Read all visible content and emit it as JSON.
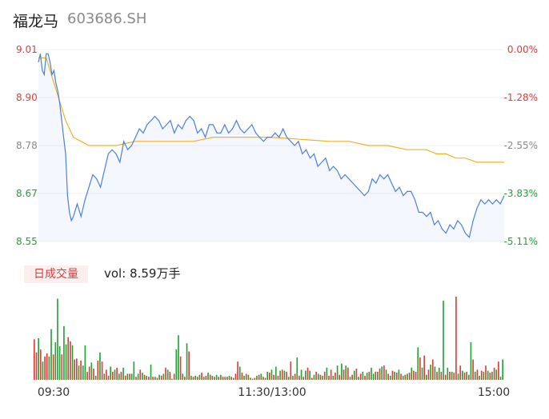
{
  "header": {
    "name": "福龙马",
    "code": "603686.SH"
  },
  "volume_panel": {
    "label": "日成交量",
    "summary": "vol: 8.59万手"
  },
  "colors": {
    "up": "#e53935",
    "down": "#21a336",
    "flat": "#888888",
    "price_line": "#4a7fe0",
    "avg_line": "#f5b025"
  },
  "chart_data": {
    "type": "line",
    "price_axis": {
      "min": 8.55,
      "max": 9.01,
      "ticks": [
        "9.01",
        "8.90",
        "8.78",
        "8.67",
        "8.55"
      ]
    },
    "pct_axis": {
      "ticks": [
        "0.00%",
        "-1.28%",
        "-2.55%",
        "-3.83%",
        "-5.11%"
      ]
    },
    "x_ticks": [
      "09:30",
      "11:30/13:00",
      "15:00"
    ],
    "x_range": [
      0,
      240
    ],
    "price": [
      [
        0,
        8.98
      ],
      [
        1,
        9.0
      ],
      [
        2,
        8.96
      ],
      [
        3,
        8.95
      ],
      [
        4,
        9.0
      ],
      [
        5,
        9.0
      ],
      [
        6,
        8.98
      ],
      [
        7,
        8.95
      ],
      [
        8,
        8.96
      ],
      [
        9,
        8.93
      ],
      [
        10,
        8.91
      ],
      [
        11,
        8.88
      ],
      [
        12,
        8.84
      ],
      [
        13,
        8.8
      ],
      [
        14,
        8.76
      ],
      [
        15,
        8.66
      ],
      [
        16,
        8.62
      ],
      [
        17,
        8.6
      ],
      [
        18,
        8.61
      ],
      [
        20,
        8.64
      ],
      [
        22,
        8.61
      ],
      [
        24,
        8.65
      ],
      [
        26,
        8.68
      ],
      [
        28,
        8.71
      ],
      [
        30,
        8.7
      ],
      [
        32,
        8.68
      ],
      [
        34,
        8.72
      ],
      [
        36,
        8.76
      ],
      [
        38,
        8.77
      ],
      [
        40,
        8.76
      ],
      [
        42,
        8.74
      ],
      [
        44,
        8.79
      ],
      [
        46,
        8.77
      ],
      [
        48,
        8.78
      ],
      [
        50,
        8.8
      ],
      [
        52,
        8.82
      ],
      [
        54,
        8.81
      ],
      [
        56,
        8.83
      ],
      [
        58,
        8.84
      ],
      [
        60,
        8.85
      ],
      [
        62,
        8.84
      ],
      [
        64,
        8.82
      ],
      [
        66,
        8.83
      ],
      [
        68,
        8.84
      ],
      [
        70,
        8.81
      ],
      [
        72,
        8.83
      ],
      [
        74,
        8.82
      ],
      [
        76,
        8.84
      ],
      [
        78,
        8.85
      ],
      [
        80,
        8.84
      ],
      [
        82,
        8.81
      ],
      [
        84,
        8.82
      ],
      [
        86,
        8.8
      ],
      [
        88,
        8.83
      ],
      [
        90,
        8.83
      ],
      [
        92,
        8.81
      ],
      [
        94,
        8.81
      ],
      [
        96,
        8.83
      ],
      [
        98,
        8.81
      ],
      [
        100,
        8.82
      ],
      [
        102,
        8.84
      ],
      [
        104,
        8.82
      ],
      [
        106,
        8.81
      ],
      [
        108,
        8.82
      ],
      [
        110,
        8.83
      ],
      [
        112,
        8.81
      ],
      [
        114,
        8.8
      ],
      [
        116,
        8.79
      ],
      [
        118,
        8.8
      ],
      [
        120,
        8.8
      ],
      [
        122,
        8.81
      ],
      [
        124,
        8.8
      ],
      [
        126,
        8.82
      ],
      [
        128,
        8.8
      ],
      [
        130,
        8.79
      ],
      [
        132,
        8.78
      ],
      [
        134,
        8.79
      ],
      [
        136,
        8.76
      ],
      [
        138,
        8.77
      ],
      [
        140,
        8.75
      ],
      [
        142,
        8.76
      ],
      [
        144,
        8.73
      ],
      [
        146,
        8.74
      ],
      [
        148,
        8.75
      ],
      [
        150,
        8.72
      ],
      [
        152,
        8.73
      ],
      [
        154,
        8.72
      ],
      [
        156,
        8.7
      ],
      [
        158,
        8.71
      ],
      [
        160,
        8.7
      ],
      [
        162,
        8.69
      ],
      [
        164,
        8.68
      ],
      [
        166,
        8.67
      ],
      [
        168,
        8.66
      ],
      [
        170,
        8.67
      ],
      [
        172,
        8.7
      ],
      [
        174,
        8.69
      ],
      [
        176,
        8.71
      ],
      [
        178,
        8.7
      ],
      [
        180,
        8.71
      ],
      [
        182,
        8.69
      ],
      [
        184,
        8.67
      ],
      [
        186,
        8.68
      ],
      [
        188,
        8.66
      ],
      [
        190,
        8.67
      ],
      [
        192,
        8.67
      ],
      [
        194,
        8.65
      ],
      [
        196,
        8.62
      ],
      [
        198,
        8.62
      ],
      [
        200,
        8.61
      ],
      [
        202,
        8.62
      ],
      [
        204,
        8.59
      ],
      [
        206,
        8.6
      ],
      [
        208,
        8.58
      ],
      [
        210,
        8.57
      ],
      [
        212,
        8.59
      ],
      [
        214,
        8.58
      ],
      [
        216,
        8.6
      ],
      [
        218,
        8.59
      ],
      [
        220,
        8.57
      ],
      [
        222,
        8.56
      ],
      [
        224,
        8.6
      ],
      [
        226,
        8.63
      ],
      [
        228,
        8.65
      ],
      [
        230,
        8.64
      ],
      [
        232,
        8.65
      ],
      [
        234,
        8.64
      ],
      [
        236,
        8.65
      ],
      [
        238,
        8.64
      ],
      [
        240,
        8.66
      ],
      [
        242,
        8.65
      ],
      [
        244,
        8.67
      ],
      [
        246,
        8.64
      ],
      [
        248,
        8.65
      ],
      [
        250,
        8.68
      ]
    ],
    "avg": [
      [
        0,
        8.99
      ],
      [
        4,
        8.99
      ],
      [
        6,
        8.96
      ],
      [
        10,
        8.9
      ],
      [
        14,
        8.84
      ],
      [
        18,
        8.8
      ],
      [
        22,
        8.79
      ],
      [
        26,
        8.78
      ],
      [
        30,
        8.78
      ],
      [
        40,
        8.78
      ],
      [
        50,
        8.79
      ],
      [
        60,
        8.79
      ],
      [
        80,
        8.79
      ],
      [
        90,
        8.8
      ],
      [
        100,
        8.8
      ],
      [
        120,
        8.8
      ],
      [
        150,
        8.79
      ],
      [
        160,
        8.79
      ],
      [
        170,
        8.78
      ],
      [
        180,
        8.78
      ],
      [
        190,
        8.77
      ],
      [
        195,
        8.77
      ],
      [
        200,
        8.77
      ],
      [
        205,
        8.76
      ],
      [
        210,
        8.76
      ],
      [
        215,
        8.75
      ],
      [
        220,
        8.75
      ],
      [
        226,
        8.74
      ],
      [
        240,
        8.74
      ],
      [
        246,
        8.73
      ],
      [
        250,
        8.73
      ]
    ],
    "volume": [
      40,
      27,
      41,
      30,
      18,
      23,
      26,
      23,
      50,
      25,
      37,
      80,
      33,
      25,
      53,
      35,
      42,
      38,
      34,
      20,
      21,
      14,
      19,
      14,
      34,
      8,
      13,
      17,
      11,
      4,
      19,
      27,
      18,
      6,
      10,
      4,
      13,
      8,
      10,
      12,
      6,
      8,
      12,
      4,
      6,
      6,
      6,
      18,
      3,
      6,
      10,
      7,
      5,
      4,
      3,
      15,
      3,
      3,
      2,
      5,
      4,
      6,
      12,
      10,
      8,
      1,
      6,
      30,
      44,
      23,
      6,
      3,
      36,
      28,
      4,
      3,
      4,
      3,
      5,
      7,
      3,
      4,
      7,
      5,
      4,
      3,
      5,
      3,
      5,
      3,
      3,
      3,
      4,
      3,
      2,
      6,
      18,
      13,
      7,
      4,
      6,
      5,
      2,
      1,
      2,
      4,
      5,
      6,
      3,
      2,
      8,
      7,
      10,
      5,
      13,
      4,
      9,
      10,
      9,
      8,
      3,
      18,
      4,
      6,
      22,
      4,
      10,
      3,
      9,
      12,
      9,
      2,
      5,
      8,
      6,
      5,
      4,
      8,
      12,
      4,
      10,
      4,
      7,
      14,
      5,
      16,
      10,
      14,
      12,
      3,
      5,
      9,
      11,
      3,
      6,
      8,
      4,
      7,
      8,
      12,
      6,
      8,
      8,
      11,
      13,
      14,
      10,
      6,
      4,
      9,
      8,
      7,
      10,
      6,
      4,
      5,
      6,
      7,
      12,
      9,
      8,
      32,
      22,
      12,
      24,
      5,
      10,
      15,
      20,
      13,
      8,
      12,
      8,
      78,
      5,
      12,
      8,
      8,
      7,
      82,
      6,
      14,
      9,
      7,
      8,
      5,
      37,
      20,
      8,
      10,
      4,
      9,
      8,
      14,
      9,
      7,
      8,
      12,
      10,
      18,
      3,
      20
    ],
    "volume_dirs": [
      1,
      1,
      -1,
      1,
      -1,
      1,
      1,
      -1,
      -1,
      1,
      -1,
      -1,
      -1,
      1,
      -1,
      -1,
      1,
      1,
      -1,
      1,
      1,
      -1,
      1,
      -1,
      -1,
      1,
      1,
      -1,
      1,
      -1,
      1,
      -1,
      1,
      -1,
      1,
      1,
      -1,
      1,
      -1,
      1,
      -1,
      1,
      -1,
      1,
      -1,
      1,
      -1,
      -1,
      1,
      -1,
      1,
      -1,
      1,
      -1,
      1,
      -1,
      1,
      -1,
      1,
      -1,
      1,
      -1,
      1,
      -1,
      1,
      -1,
      1,
      -1,
      -1,
      1,
      -1,
      1,
      -1,
      1,
      -1,
      1,
      -1,
      1,
      -1,
      1,
      -1,
      1,
      -1,
      1,
      -1,
      1,
      -1,
      1,
      -1,
      1,
      -1,
      1,
      -1,
      1,
      -1,
      1,
      1,
      -1,
      1,
      -1,
      1,
      -1,
      1,
      -1,
      1,
      -1,
      1,
      -1,
      1,
      -1,
      -1,
      1,
      -1,
      1,
      -1,
      1,
      -1,
      1,
      -1,
      1,
      -1,
      1,
      -1,
      1,
      -1,
      1,
      -1,
      1,
      -1,
      1,
      -1,
      1,
      -1,
      1,
      -1,
      1,
      -1,
      1,
      -1,
      1,
      1,
      -1,
      1,
      -1,
      1,
      -1,
      1,
      -1,
      1,
      -1,
      1,
      -1,
      1,
      -1,
      1,
      -1,
      1,
      -1,
      1,
      -1,
      -1,
      1,
      -1,
      1,
      -1,
      1,
      -1,
      1,
      -1,
      1,
      -1,
      1,
      -1,
      1,
      -1,
      1,
      -1,
      1,
      -1,
      1,
      1,
      -1,
      1,
      -1,
      1,
      -1,
      1,
      -1,
      1,
      -1,
      1,
      -1,
      1,
      -1,
      1,
      -1,
      1,
      -1,
      1,
      1,
      -1,
      1,
      -1,
      1,
      -1,
      1,
      -1,
      1,
      -1,
      1,
      -1,
      1,
      -1,
      1,
      -1,
      1,
      -1,
      1,
      -1,
      1,
      -1,
      -1
    ]
  }
}
